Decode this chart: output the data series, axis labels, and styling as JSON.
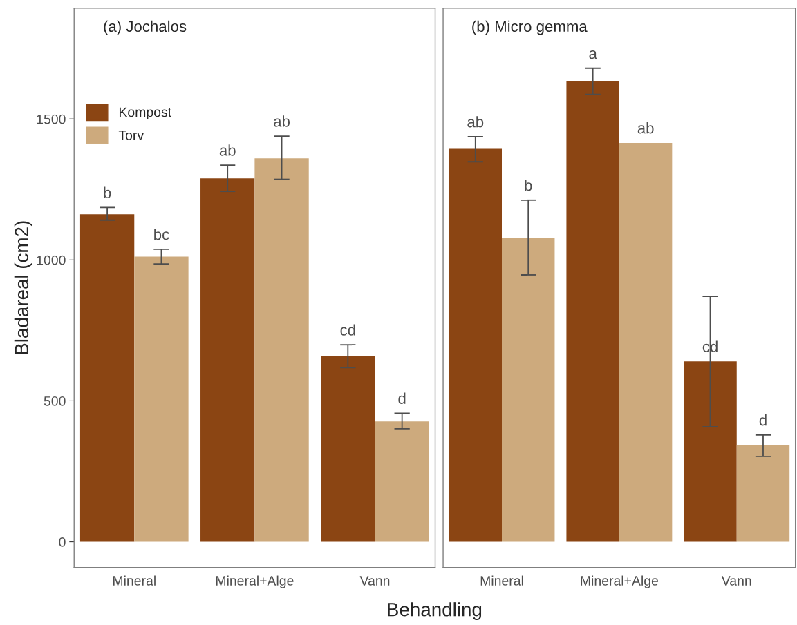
{
  "chart_data": [
    {
      "type": "bar",
      "title": "(a) Jochalos",
      "ylabel": "Bladareal (cm2)",
      "xlabel": "Behandling",
      "categories": [
        "Mineral",
        "Mineral+Alge",
        "Vann"
      ],
      "ylim": [
        -91,
        1893
      ],
      "yticks": [
        0,
        500,
        1000,
        1500
      ],
      "grid": false,
      "legend": "top left",
      "series": [
        {
          "name": "Kompost",
          "color": "#8b4513",
          "values": [
            1162,
            1289,
            659
          ],
          "errors": [
            [
              1141,
              1186
            ],
            [
              1243,
              1336
            ],
            [
              618,
              699
            ]
          ],
          "value_labels": [
            "b",
            "ab",
            "cd"
          ]
        },
        {
          "name": "Torv",
          "color": "#cdaa7d",
          "values": [
            1012,
            1360,
            427
          ],
          "errors": [
            [
              986,
              1038
            ],
            [
              1286,
              1439
            ],
            [
              401,
              456
            ]
          ],
          "value_labels": [
            "bc",
            "ab",
            "d"
          ]
        }
      ]
    },
    {
      "type": "bar",
      "title": "(b) Micro gemma",
      "categories": [
        "Mineral",
        "Mineral+Alge",
        "Vann"
      ],
      "ylim": [
        -91,
        1893
      ],
      "yticks": [
        0,
        500,
        1000,
        1500
      ],
      "grid": false,
      "tick_labels": "x",
      "series": [
        {
          "color": "#8b4513",
          "values": [
            1394,
            1635,
            640
          ],
          "errors": [
            [
              1348,
              1437
            ],
            [
              1587,
              1680
            ],
            [
              408,
              871
            ]
          ],
          "value_labels": [
            "ab",
            "a",
            "cd"
          ]
        },
        {
          "color": "#cdaa7d",
          "values": [
            1079,
            1415,
            344
          ],
          "errors": [
            [
              947,
              1212
            ],
            null,
            [
              303,
              379
            ]
          ],
          "value_labels": [
            "b",
            "ab",
            "d"
          ]
        }
      ]
    }
  ]
}
